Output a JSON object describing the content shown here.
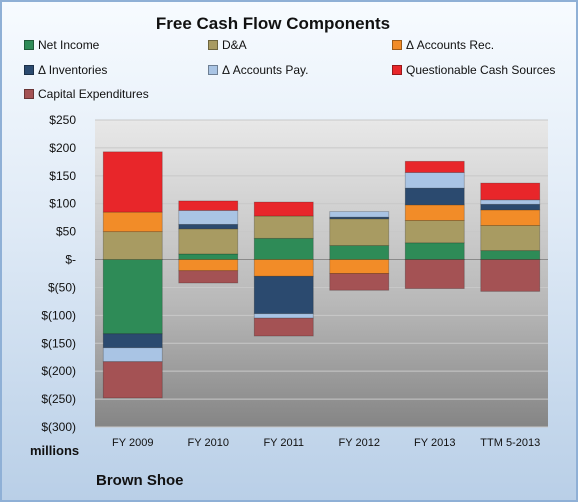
{
  "chart_data": {
    "type": "bar",
    "stacked": true,
    "title": "Free Cash Flow Components",
    "units_label": "millions",
    "company": "Brown Shoe",
    "categories": [
      "FY 2009",
      "FY 2010",
      "FY 2011",
      "FY 2012",
      "FY 2013",
      "TTM 5-2013"
    ],
    "ylim": [
      -300,
      250
    ],
    "yticks": [
      {
        "v": 250,
        "label": "$250"
      },
      {
        "v": 200,
        "label": "$200"
      },
      {
        "v": 150,
        "label": "$150"
      },
      {
        "v": 100,
        "label": "$100"
      },
      {
        "v": 50,
        "label": "$50"
      },
      {
        "v": 0,
        "label": "$-"
      },
      {
        "v": -50,
        "label": "$(50)"
      },
      {
        "v": -100,
        "label": "$(100)"
      },
      {
        "v": -150,
        "label": "$(150)"
      },
      {
        "v": -200,
        "label": "$(200)"
      },
      {
        "v": -250,
        "label": "$(250)"
      },
      {
        "v": -300,
        "label": "$(300)"
      }
    ],
    "legend_position": "top",
    "series": [
      {
        "name": "Net Income",
        "color": "#2e8b57",
        "values": [
          -133,
          10,
          38,
          25,
          30,
          16
        ]
      },
      {
        "name": "D&A",
        "color": "#a89b62",
        "values": [
          50,
          45,
          40,
          48,
          40,
          45
        ]
      },
      {
        "name": "Δ Accounts Rec.",
        "color": "#f28c28",
        "values": [
          35,
          -20,
          -30,
          -25,
          28,
          28
        ]
      },
      {
        "name": "Δ Inventories",
        "color": "#2b4a6f",
        "values": [
          -25,
          8,
          -67,
          3,
          30,
          10
        ]
      },
      {
        "name": "Δ Accounts Pay.",
        "color": "#a9c4e4",
        "values": [
          -25,
          25,
          -8,
          10,
          28,
          8
        ]
      },
      {
        "name": "Questionable Cash Sources",
        "color": "#e8262a",
        "values": [
          108,
          17,
          25,
          0,
          20,
          30
        ]
      },
      {
        "name": "Capital Expenditures",
        "color": "#a45254",
        "values": [
          -65,
          -22,
          -32,
          -30,
          -52,
          -57
        ]
      }
    ]
  }
}
